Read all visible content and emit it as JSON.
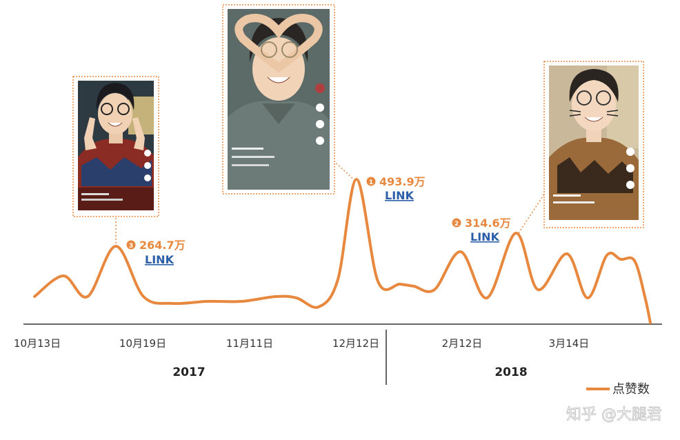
{
  "colors": {
    "line": "#e8883e",
    "axis": "#333333",
    "link": "#2a5ea8",
    "photo_border": "#e8883e"
  },
  "chart_data": {
    "type": "line",
    "series": [
      {
        "name": "点赞数",
        "x": [
          0,
          0.25,
          0.6,
          0.95,
          1.3,
          1.65,
          2.0,
          2.4,
          2.8,
          3.2,
          3.6,
          4.0,
          4.3,
          4.55,
          4.75,
          5.0,
          5.2,
          5.5,
          5.8,
          6.0,
          6.2,
          6.45,
          6.65,
          6.95,
          7.25,
          7.55,
          7.85,
          8.15,
          8.45,
          8.75,
          8.95,
          9.1
        ],
        "values": [
          8,
          14,
          8,
          23,
          8,
          6,
          6.5,
          6.5,
          8,
          8,
          6,
          10,
          49,
          14,
          12,
          11,
          22,
          8,
          28,
          9,
          22,
          10,
          22,
          9,
          21,
          6,
          2,
          0,
          0,
          0,
          0,
          0
        ],
        "y_index": [
          8,
          14,
          8,
          23,
          8,
          6,
          6.5,
          6.5,
          8,
          8,
          6,
          10,
          49,
          14,
          12,
          11,
          22,
          8,
          28,
          9,
          22,
          10,
          22,
          9,
          21,
          6,
          2,
          0,
          0,
          0,
          0,
          0
        ]
      }
    ],
    "x_tick_labels": [
      "10月13日",
      "10月19日",
      "11月11日",
      "12月12日",
      "2月12日",
      "3月14日"
    ],
    "year_labels": [
      "2017",
      "2018"
    ],
    "annotations": [
      {
        "marker": "❸",
        "value": "264.7万",
        "link": "LINK"
      },
      {
        "marker": "❶",
        "value": "493.9万",
        "link": "LINK"
      },
      {
        "marker": "❷",
        "value": "314.6万",
        "link": "LINK"
      }
    ],
    "legend": {
      "label": "点赞数",
      "position": "bottom-right"
    },
    "grid": false,
    "y_axis_shown": false
  },
  "watermark": "知乎 @大腿君"
}
